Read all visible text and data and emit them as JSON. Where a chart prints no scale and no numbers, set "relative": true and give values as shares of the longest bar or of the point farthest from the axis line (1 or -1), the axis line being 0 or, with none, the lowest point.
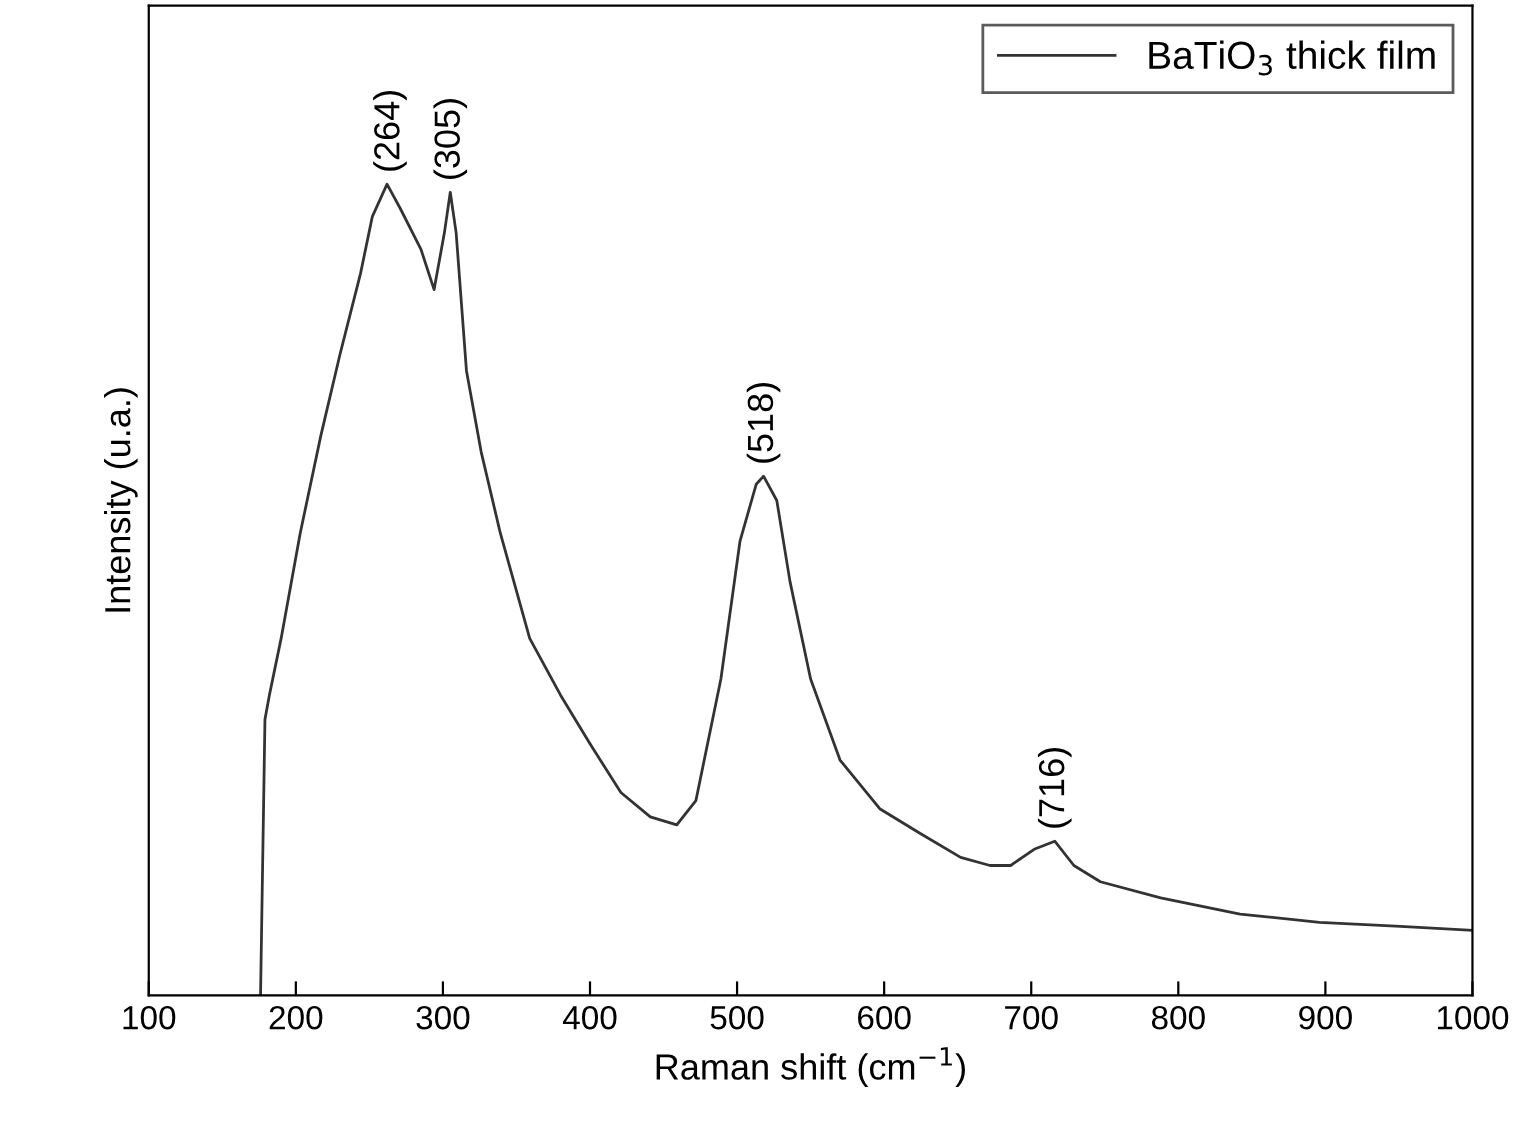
{
  "chart_data": {
    "type": "line",
    "relative": true,
    "xlabel": "Raman shift (cm$^{−1}$)",
    "ylabel": "Intensity (u.a.)",
    "xlim": [
      100,
      1000
    ],
    "xticks": [
      100,
      200,
      300,
      400,
      500,
      600,
      700,
      800,
      900,
      1000
    ],
    "legend": "top right",
    "grid": false,
    "line_style": "solid",
    "x": [
      176,
      179,
      182,
      190,
      203,
      217,
      230,
      244,
      252,
      262,
      271,
      285,
      294,
      301,
      305,
      309,
      316,
      326,
      339,
      359,
      380,
      400,
      421,
      441,
      459,
      472,
      489,
      502,
      513,
      518,
      527,
      536,
      550,
      570,
      597,
      624,
      652,
      672,
      686,
      702,
      716,
      729,
      747,
      788,
      842,
      896,
      951,
      1000
    ],
    "series": [
      {
        "name": "BaTiO$_{3}$ thick film",
        "color": "#333333",
        "values": [
          0,
          0.34,
          0.37,
          0.44,
          0.57,
          0.69,
          0.79,
          0.89,
          0.96,
          1.0,
          0.97,
          0.92,
          0.87,
          0.94,
          0.99,
          0.94,
          0.77,
          0.67,
          0.57,
          0.44,
          0.37,
          0.31,
          0.25,
          0.22,
          0.21,
          0.24,
          0.39,
          0.56,
          0.63,
          0.64,
          0.61,
          0.51,
          0.39,
          0.29,
          0.23,
          0.2,
          0.17,
          0.16,
          0.16,
          0.18,
          0.19,
          0.16,
          0.14,
          0.12,
          0.1,
          0.09,
          0.085,
          0.08
        ]
      }
    ],
    "annotations": [
      {
        "text": "(264)",
        "x": 264,
        "y": 1.0
      },
      {
        "text": "(305)",
        "x": 305,
        "y": 0.99
      },
      {
        "text": "(518)",
        "x": 518,
        "y": 0.64
      },
      {
        "text": "(716)",
        "x": 716,
        "y": 0.19
      }
    ]
  }
}
